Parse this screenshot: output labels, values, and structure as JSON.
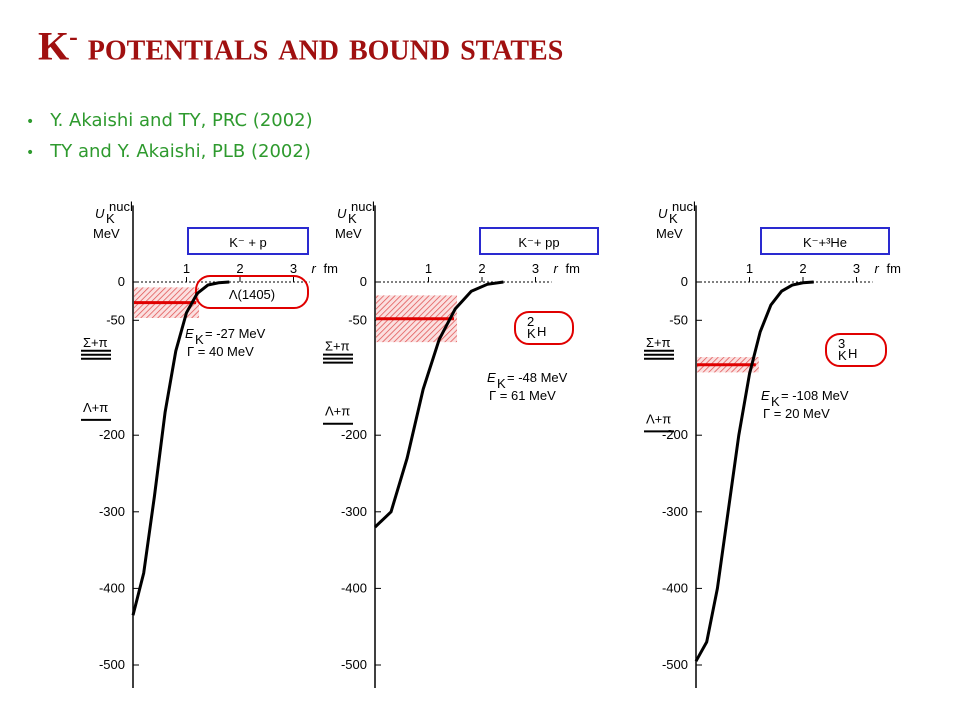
{
  "title_main": "K",
  "title_sup": "-",
  "title_rest": "potentials and bound states",
  "bullets": [
    "Y. Akaishi and TY, PRC (2002)",
    "TY and Y. Akaishi, PLB (2002)"
  ],
  "chart_data": [
    {
      "type": "line",
      "ylabel": "U",
      "ylabel_sub": "K",
      "ylabel_sup": "nucl",
      "yunit": "MeV",
      "xlabel": "r",
      "xunit": "fm",
      "system": "K⁻ + p",
      "state": {
        "name": "Λ(1405)"
      },
      "energy_symbol": "E",
      "energy_sub": "K",
      "energy_label": "= -27 MeV",
      "gamma_label": "Γ = 40 MeV",
      "level": -27,
      "width": 40,
      "thresholds": [
        {
          "label": "Σ+π",
          "value": -95
        },
        {
          "label": "Λ+π",
          "value": -180
        }
      ],
      "x": [
        0,
        0.2,
        0.4,
        0.6,
        0.8,
        1.0,
        1.2,
        1.4,
        1.6,
        1.8
      ],
      "values": [
        -435,
        -380,
        -280,
        -170,
        -90,
        -40,
        -15,
        -4,
        -1,
        0
      ],
      "color": "#000000",
      "xlim": [
        0,
        3.3
      ],
      "ylim": [
        -530,
        100
      ],
      "xticks": [
        1,
        2,
        3
      ],
      "yticks": [
        0,
        -50,
        -200,
        -300,
        -400,
        -500
      ]
    },
    {
      "type": "line",
      "ylabel": "U",
      "ylabel_sub": "K",
      "ylabel_sup": "nucl",
      "yunit": "MeV",
      "xlabel": "r",
      "xunit": "fm",
      "system": "K⁻+ pp",
      "state": {
        "sup": "2",
        "sub": "K",
        "name": "H"
      },
      "energy_symbol": "E",
      "energy_sub": "K",
      "energy_label": "= -48 MeV",
      "gamma_label": "Γ = 61 MeV",
      "level": -48,
      "width": 61,
      "thresholds": [
        {
          "label": "Σ+π",
          "value": -100
        },
        {
          "label": "Λ+π",
          "value": -185
        }
      ],
      "x": [
        0,
        0.3,
        0.6,
        0.9,
        1.2,
        1.5,
        1.8,
        2.1,
        2.4
      ],
      "values": [
        -320,
        -300,
        -230,
        -140,
        -75,
        -35,
        -12,
        -3,
        0
      ],
      "color": "#000000",
      "xlim": [
        0,
        3.3
      ],
      "ylim": [
        -530,
        100
      ],
      "xticks": [
        1,
        2,
        3
      ],
      "yticks": [
        0,
        -50,
        -200,
        -300,
        -400,
        -500
      ]
    },
    {
      "type": "line",
      "ylabel": "U",
      "ylabel_sub": "K",
      "ylabel_sup": "nucl",
      "yunit": "MeV",
      "xlabel": "r",
      "xunit": "fm",
      "system": "K⁻+³He",
      "state": {
        "sup": "3",
        "sub": "K",
        "name": "H"
      },
      "energy_symbol": "E",
      "energy_sub": "K",
      "energy_label": "= -108 MeV",
      "gamma_label": "Γ = 20 MeV",
      "level": -108,
      "width": 20,
      "thresholds": [
        {
          "label": "Σ+π",
          "value": -95
        },
        {
          "label": "Λ+π",
          "value": -195
        }
      ],
      "x": [
        0,
        0.2,
        0.4,
        0.6,
        0.8,
        1.0,
        1.2,
        1.4,
        1.6,
        1.8,
        2.0,
        2.2
      ],
      "values": [
        -495,
        -470,
        -400,
        -300,
        -200,
        -120,
        -65,
        -30,
        -12,
        -4,
        -1,
        0
      ],
      "color": "#000000",
      "xlim": [
        0,
        3.3
      ],
      "ylim": [
        -530,
        100
      ],
      "xticks": [
        1,
        2,
        3
      ],
      "yticks": [
        0,
        -50,
        -200,
        -300,
        -400,
        -500
      ]
    }
  ]
}
